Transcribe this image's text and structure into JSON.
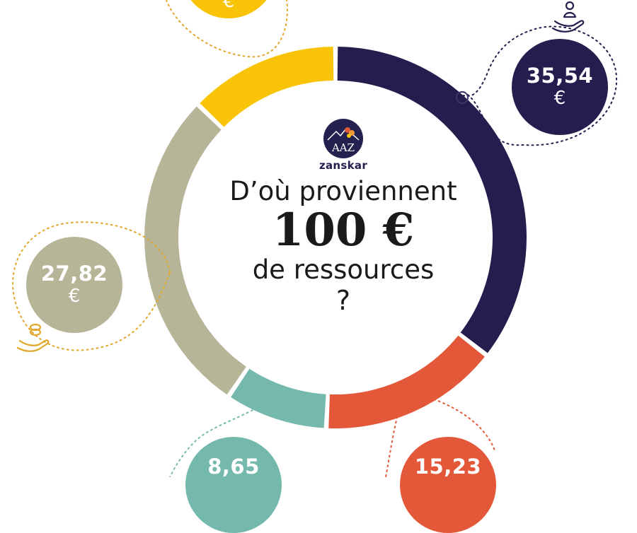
{
  "header": {
    "brand": "zanskar",
    "logo_letters": "AAZ",
    "line1": "D’où proviennent",
    "line2": "100 €",
    "line3": "de ressources",
    "line4": "?"
  },
  "chart_data": {
    "type": "pie",
    "total": 100,
    "unit": "€",
    "slices": [
      {
        "label": "35,54",
        "value": 35.54,
        "currency": "€",
        "color": "#241d4e"
      },
      {
        "label": "15,23",
        "value": 15.23,
        "currency": "€",
        "color": "#e4583a"
      },
      {
        "label": "8,65",
        "value": 8.65,
        "currency": "€",
        "color": "#74b9ac"
      },
      {
        "label": "27,82",
        "value": 27.82,
        "currency": "€",
        "color": "#b7b598"
      },
      {
        "label": "",
        "value": 12.76,
        "currency": "€",
        "color": "#f9c307"
      }
    ]
  },
  "icons": {
    "top_right": "hand-person-icon",
    "left": "hand-coins-icon"
  }
}
